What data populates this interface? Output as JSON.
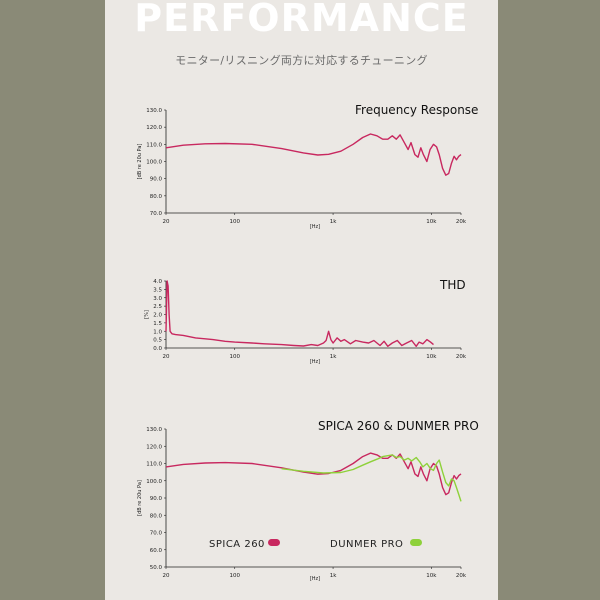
{
  "header": {
    "title": "PERFORMANCE",
    "subtitle": "モニター/リスニング両方に対応するチューニング"
  },
  "colors": {
    "background": "#8a8a77",
    "panel": "#ebe8e4",
    "spica": "#c8285f",
    "dunmer": "#8ed13a"
  },
  "chart_data": [
    {
      "type": "line",
      "title": "Frequency Response",
      "xlabel": "[Hz]",
      "ylabel": "[dB re 20u Pa]",
      "xscale": "log",
      "xlim": [
        20,
        20000
      ],
      "ylim": [
        70,
        130
      ],
      "xticks": [
        {
          "v": 20,
          "label": "20"
        },
        {
          "v": 100,
          "label": "100"
        },
        {
          "v": 1000,
          "label": "1k"
        },
        {
          "v": 10000,
          "label": "10k"
        },
        {
          "v": 20000,
          "label": "20k"
        }
      ],
      "yticks": [
        {
          "v": 70,
          "label": "70.0"
        },
        {
          "v": 80,
          "label": "80.0"
        },
        {
          "v": 90,
          "label": "90.0"
        },
        {
          "v": 100,
          "label": "100.0"
        },
        {
          "v": 110,
          "label": "110.0"
        },
        {
          "v": 120,
          "label": "120.0"
        },
        {
          "v": 130,
          "label": "130.0"
        }
      ],
      "series": [
        {
          "color": "#c8285f",
          "points": [
            [
              20,
              108
            ],
            [
              30,
              109.5
            ],
            [
              50,
              110.3
            ],
            [
              80,
              110.5
            ],
            [
              150,
              110
            ],
            [
              300,
              107.5
            ],
            [
              500,
              105
            ],
            [
              700,
              103.8
            ],
            [
              900,
              104.2
            ],
            [
              1200,
              106
            ],
            [
              1600,
              110
            ],
            [
              2000,
              114
            ],
            [
              2400,
              116
            ],
            [
              2800,
              115
            ],
            [
              3200,
              113
            ],
            [
              3600,
              113
            ],
            [
              4000,
              115
            ],
            [
              4400,
              113
            ],
            [
              4800,
              115.5
            ],
            [
              5300,
              111
            ],
            [
              5800,
              107
            ],
            [
              6200,
              111
            ],
            [
              6800,
              104
            ],
            [
              7300,
              102.5
            ],
            [
              7800,
              108
            ],
            [
              8300,
              104
            ],
            [
              9000,
              100
            ],
            [
              9700,
              107
            ],
            [
              10500,
              110
            ],
            [
              11300,
              108.5
            ],
            [
              12000,
              104
            ],
            [
              13000,
              96
            ],
            [
              14000,
              92
            ],
            [
              15000,
              93
            ],
            [
              16000,
              99
            ],
            [
              17000,
              103
            ],
            [
              18000,
              101
            ],
            [
              19000,
              103
            ],
            [
              20000,
              104
            ]
          ]
        }
      ]
    },
    {
      "type": "line",
      "title": "THD",
      "xlabel": "[Hz]",
      "ylabel": "[%]",
      "xscale": "log",
      "xlim": [
        20,
        20000
      ],
      "ylim": [
        0,
        4
      ],
      "xticks": [
        {
          "v": 20,
          "label": "20"
        },
        {
          "v": 100,
          "label": "100"
        },
        {
          "v": 1000,
          "label": "1k"
        },
        {
          "v": 10000,
          "label": "10k"
        },
        {
          "v": 20000,
          "label": "20k"
        }
      ],
      "yticks": [
        {
          "v": 0,
          "label": "0.0"
        },
        {
          "v": 0.5,
          "label": "0.5"
        },
        {
          "v": 1,
          "label": "1.0"
        },
        {
          "v": 1.5,
          "label": "1.5"
        },
        {
          "v": 2,
          "label": "2.0"
        },
        {
          "v": 2.5,
          "label": "2.5"
        },
        {
          "v": 3,
          "label": "3.0"
        },
        {
          "v": 3.5,
          "label": "3.5"
        },
        {
          "v": 4,
          "label": "4.0"
        }
      ],
      "series": [
        {
          "color": "#c8285f",
          "points": [
            [
              20,
              1
            ],
            [
              20.5,
              4
            ],
            [
              21,
              3.7
            ],
            [
              21.5,
              2
            ],
            [
              22,
              1
            ],
            [
              23,
              0.85
            ],
            [
              25,
              0.8
            ],
            [
              30,
              0.75
            ],
            [
              40,
              0.6
            ],
            [
              50,
              0.55
            ],
            [
              60,
              0.5
            ],
            [
              80,
              0.4
            ],
            [
              100,
              0.35
            ],
            [
              150,
              0.3
            ],
            [
              200,
              0.25
            ],
            [
              300,
              0.2
            ],
            [
              400,
              0.15
            ],
            [
              500,
              0.12
            ],
            [
              600,
              0.2
            ],
            [
              700,
              0.15
            ],
            [
              800,
              0.3
            ],
            [
              850,
              0.45
            ],
            [
              900,
              1.0
            ],
            [
              950,
              0.5
            ],
            [
              1000,
              0.3
            ],
            [
              1100,
              0.6
            ],
            [
              1200,
              0.4
            ],
            [
              1300,
              0.5
            ],
            [
              1500,
              0.25
            ],
            [
              1700,
              0.45
            ],
            [
              2000,
              0.35
            ],
            [
              2300,
              0.3
            ],
            [
              2600,
              0.45
            ],
            [
              3000,
              0.15
            ],
            [
              3300,
              0.4
            ],
            [
              3600,
              0.1
            ],
            [
              4000,
              0.3
            ],
            [
              4500,
              0.45
            ],
            [
              5000,
              0.15
            ],
            [
              5600,
              0.3
            ],
            [
              6300,
              0.45
            ],
            [
              7000,
              0.1
            ],
            [
              7500,
              0.35
            ],
            [
              8200,
              0.25
            ],
            [
              9000,
              0.5
            ],
            [
              9800,
              0.35
            ],
            [
              10500,
              0.2
            ]
          ]
        }
      ]
    },
    {
      "type": "line",
      "title": "SPICA 260 & DUNMER PRO",
      "xlabel": "[Hz]",
      "ylabel": "[dB re 20u Pa]",
      "xscale": "log",
      "xlim": [
        20,
        20000
      ],
      "ylim": [
        50,
        130
      ],
      "xticks": [
        {
          "v": 20,
          "label": "20"
        },
        {
          "v": 100,
          "label": "100"
        },
        {
          "v": 1000,
          "label": "1k"
        },
        {
          "v": 10000,
          "label": "10k"
        },
        {
          "v": 20000,
          "label": "20k"
        }
      ],
      "yticks": [
        {
          "v": 50,
          "label": "50.0"
        },
        {
          "v": 60,
          "label": "60.0"
        },
        {
          "v": 70,
          "label": "70.0"
        },
        {
          "v": 80,
          "label": "80.0"
        },
        {
          "v": 90,
          "label": "90.0"
        },
        {
          "v": 100,
          "label": "100.0"
        },
        {
          "v": 110,
          "label": "110.0"
        },
        {
          "v": 120,
          "label": "120.0"
        },
        {
          "v": 130,
          "label": "130.0"
        }
      ],
      "legend": "bottom",
      "series": [
        {
          "name": "SPICA 260",
          "color": "#c8285f",
          "points": [
            [
              20,
              108
            ],
            [
              30,
              109.5
            ],
            [
              50,
              110.3
            ],
            [
              80,
              110.5
            ],
            [
              150,
              110
            ],
            [
              300,
              107.5
            ],
            [
              500,
              105
            ],
            [
              700,
              103.8
            ],
            [
              900,
              104.2
            ],
            [
              1200,
              106
            ],
            [
              1600,
              110
            ],
            [
              2000,
              114
            ],
            [
              2400,
              116
            ],
            [
              2800,
              115
            ],
            [
              3200,
              113
            ],
            [
              3600,
              113
            ],
            [
              4000,
              115
            ],
            [
              4400,
              113
            ],
            [
              4800,
              115.5
            ],
            [
              5300,
              111
            ],
            [
              5800,
              107
            ],
            [
              6200,
              111
            ],
            [
              6800,
              104
            ],
            [
              7300,
              102.5
            ],
            [
              7800,
              108
            ],
            [
              8300,
              104
            ],
            [
              9000,
              100
            ],
            [
              9700,
              107
            ],
            [
              10500,
              110
            ],
            [
              11300,
              108.5
            ],
            [
              12000,
              104
            ],
            [
              13000,
              96
            ],
            [
              14000,
              92
            ],
            [
              15000,
              93
            ],
            [
              16000,
              99
            ],
            [
              17000,
              103
            ],
            [
              18000,
              101
            ],
            [
              19000,
              103
            ],
            [
              20000,
              104
            ]
          ]
        },
        {
          "name": "DUNMER PRO",
          "color": "#8ed13a",
          "points": [
            [
              300,
              107
            ],
            [
              500,
              105.5
            ],
            [
              800,
              104.5
            ],
            [
              1200,
              104.8
            ],
            [
              1600,
              106.5
            ],
            [
              2000,
              109
            ],
            [
              2400,
              111
            ],
            [
              2800,
              112.5
            ],
            [
              3200,
              114
            ],
            [
              3600,
              114.5
            ],
            [
              4000,
              115
            ],
            [
              4400,
              113.5
            ],
            [
              4800,
              114
            ],
            [
              5300,
              112
            ],
            [
              5800,
              113
            ],
            [
              6300,
              111.5
            ],
            [
              7000,
              113.5
            ],
            [
              7600,
              111
            ],
            [
              8200,
              108
            ],
            [
              9000,
              110
            ],
            [
              9800,
              107
            ],
            [
              10500,
              106
            ],
            [
              11300,
              110
            ],
            [
              12000,
              112
            ],
            [
              13000,
              105
            ],
            [
              14000,
              99
            ],
            [
              15000,
              97
            ],
            [
              16000,
              101
            ],
            [
              17000,
              100
            ],
            [
              18000,
              96
            ],
            [
              19000,
              92
            ],
            [
              20000,
              88
            ]
          ]
        }
      ]
    }
  ]
}
